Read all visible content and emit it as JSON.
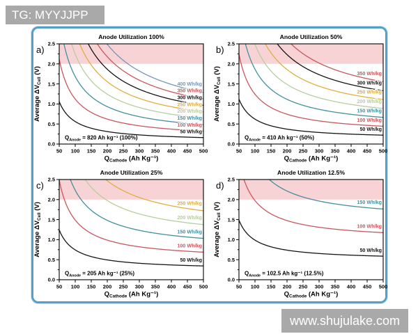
{
  "watermarks": {
    "top_left": "TG: MYYJJPP",
    "bottom_right": "www.shujulake.com"
  },
  "colors": {
    "frame_border": "#55a0c6",
    "watermark_bg": "#a9a9a9",
    "watermark_text": "#ffffff",
    "shaded_band": "#f8d3d6",
    "axis": "#000000"
  },
  "axes": {
    "xlabel_parts": {
      "main": "Q",
      "sub": "Cathode",
      "rest": " (Ah Kg⁻¹)"
    },
    "ylabel_parts": {
      "main": "Average ΔV",
      "sub": "Cell",
      "rest": " (V)"
    },
    "x_ticks": [
      50,
      100,
      150,
      200,
      250,
      300,
      350,
      400,
      450,
      500
    ],
    "y_ticks": [
      0.0,
      0.5,
      1.0,
      1.5,
      2.0,
      2.5
    ],
    "xlim": [
      50,
      500
    ],
    "ylim": [
      0,
      2.5
    ],
    "shaded_region": {
      "y_from": 2.0,
      "y_to": 2.5
    }
  },
  "chart_data": [
    {
      "type": "line",
      "panel": "a",
      "panel_label": "a)",
      "title": "Anode Utilization 100%",
      "xlabel": "Q_Cathode (Ah Kg⁻¹)",
      "ylabel": "Average ΔV_Cell (V)",
      "xlim": [
        50,
        500
      ],
      "ylim": [
        0,
        2.5
      ],
      "q_anode_ah_kg": 820,
      "annotation": "Q_Anode = 820 Ah kg⁻¹ (100%)",
      "annotation_parts": {
        "main": "Q",
        "sub": "Anode",
        "rest": " = 820 Ah kg⁻¹ (100%)"
      },
      "shaded_region": {
        "y_from": 2.0,
        "y_to": 2.5
      },
      "x": [
        50,
        100,
        150,
        200,
        250,
        300,
        350,
        400,
        450,
        500
      ],
      "series": [
        {
          "name": "50 Wh/kg",
          "wh_per_kg": 50,
          "color": "#141414",
          "values": [
            1.061,
            0.561,
            0.394,
            0.311,
            0.261,
            0.228,
            0.204,
            0.186,
            0.172,
            0.161
          ]
        },
        {
          "name": "100 Wh/kg",
          "wh_per_kg": 100,
          "color": "#c9565c",
          "values": [
            2.122,
            1.122,
            0.789,
            0.622,
            0.522,
            0.455,
            0.408,
            0.372,
            0.344,
            0.322
          ]
        },
        {
          "name": "150 Wh/kg",
          "wh_per_kg": 150,
          "color": "#42909c",
          "values": [
            3.183,
            1.683,
            1.183,
            0.933,
            0.783,
            0.683,
            0.611,
            0.558,
            0.516,
            0.483
          ]
        },
        {
          "name": "200 Wh/kg",
          "wh_per_kg": 200,
          "color": "#b7cd9d",
          "values": [
            4.244,
            2.244,
            1.577,
            1.244,
            1.044,
            0.911,
            0.815,
            0.744,
            0.688,
            0.644
          ]
        },
        {
          "name": "250 Wh/kg",
          "wh_per_kg": 250,
          "color": "#deaf3d",
          "values": [
            5.305,
            2.805,
            1.972,
            1.555,
            1.305,
            1.138,
            1.019,
            0.93,
            0.86,
            0.805
          ]
        },
        {
          "name": "300 Wh/kg",
          "wh_per_kg": 300,
          "color": "#141414",
          "values": [
            6.366,
            3.366,
            2.366,
            1.866,
            1.566,
            1.366,
            1.223,
            1.116,
            1.033,
            0.966
          ]
        },
        {
          "name": "350 Wh/kg",
          "wh_per_kg": 350,
          "color": "#c9565c",
          "values": [
            7.427,
            3.927,
            2.76,
            2.177,
            1.827,
            1.594,
            1.427,
            1.302,
            1.205,
            1.127
          ]
        },
        {
          "name": "400 Wh/kg",
          "wh_per_kg": 400,
          "color": "#7596b6",
          "values": [
            8.488,
            4.488,
            3.154,
            2.488,
            2.088,
            1.821,
            1.631,
            1.488,
            1.377,
            1.288
          ]
        }
      ]
    },
    {
      "type": "line",
      "panel": "b",
      "panel_label": "b)",
      "title": "Anode Utilization 50%",
      "xlabel": "Q_Cathode (Ah Kg⁻¹)",
      "ylabel": "Average ΔV_Cell (V)",
      "xlim": [
        50,
        500
      ],
      "ylim": [
        0,
        2.5
      ],
      "q_anode_ah_kg": 410,
      "annotation": "Q_Anode = 410 Ah kg⁻¹ (50%)",
      "annotation_parts": {
        "main": "Q",
        "sub": "Anode",
        "rest": " = 410 Ah kg⁻¹ (50%)"
      },
      "shaded_region": {
        "y_from": 2.0,
        "y_to": 2.5
      },
      "x": [
        50,
        100,
        150,
        200,
        250,
        300,
        350,
        400,
        450,
        500
      ],
      "series": [
        {
          "name": "50 Wh/kg",
          "wh_per_kg": 50,
          "color": "#141414",
          "values": [
            1.122,
            0.622,
            0.455,
            0.372,
            0.322,
            0.289,
            0.265,
            0.247,
            0.233,
            0.222
          ]
        },
        {
          "name": "100 Wh/kg",
          "wh_per_kg": 100,
          "color": "#c9565c",
          "values": [
            2.244,
            1.244,
            0.911,
            0.744,
            0.644,
            0.577,
            0.53,
            0.494,
            0.466,
            0.444
          ]
        },
        {
          "name": "150 Wh/kg",
          "wh_per_kg": 150,
          "color": "#42909c",
          "values": [
            3.366,
            1.866,
            1.366,
            1.116,
            0.966,
            0.866,
            0.794,
            0.741,
            0.699,
            0.666
          ]
        },
        {
          "name": "200 Wh/kg",
          "wh_per_kg": 200,
          "color": "#b7cd9d",
          "values": [
            4.488,
            2.488,
            1.821,
            1.488,
            1.288,
            1.154,
            1.059,
            0.988,
            0.932,
            0.888
          ]
        },
        {
          "name": "250 Wh/kg",
          "wh_per_kg": 250,
          "color": "#deaf3d",
          "values": [
            5.61,
            3.11,
            2.276,
            1.86,
            1.61,
            1.443,
            1.324,
            1.235,
            1.165,
            1.11
          ]
        },
        {
          "name": "300 Wh/kg",
          "wh_per_kg": 300,
          "color": "#141414",
          "values": [
            6.732,
            3.732,
            2.732,
            2.232,
            1.932,
            1.732,
            1.589,
            1.482,
            1.398,
            1.332
          ]
        },
        {
          "name": "350 Wh/kg",
          "wh_per_kg": 350,
          "color": "#c9565c",
          "values": [
            7.854,
            4.354,
            3.187,
            2.604,
            2.254,
            2.02,
            1.854,
            1.729,
            1.631,
            1.554
          ]
        }
      ]
    },
    {
      "type": "line",
      "panel": "c",
      "panel_label": "c)",
      "title": "Anode Utilization 25%",
      "xlabel": "Q_Cathode (Ah Kg⁻¹)",
      "ylabel": "Average ΔV_Cell (V)",
      "xlim": [
        50,
        500
      ],
      "ylim": [
        0,
        2.5
      ],
      "q_anode_ah_kg": 205,
      "annotation": "Q_Anode = 205 Ah kg⁻¹ (25%)",
      "annotation_parts": {
        "main": "Q",
        "sub": "Anode",
        "rest": " = 205 Ah kg⁻¹ (25%)"
      },
      "shaded_region": {
        "y_from": 2.0,
        "y_to": 2.5
      },
      "x": [
        50,
        100,
        150,
        200,
        250,
        300,
        350,
        400,
        450,
        500
      ],
      "series": [
        {
          "name": "50 Wh/kg",
          "wh_per_kg": 50,
          "color": "#141414",
          "values": [
            1.244,
            0.744,
            0.577,
            0.494,
            0.444,
            0.411,
            0.387,
            0.369,
            0.355,
            0.344
          ]
        },
        {
          "name": "100 Wh/kg",
          "wh_per_kg": 100,
          "color": "#c9565c",
          "values": [
            2.488,
            1.488,
            1.154,
            0.988,
            0.888,
            0.821,
            0.774,
            0.738,
            0.71,
            0.688
          ]
        },
        {
          "name": "150 Wh/kg",
          "wh_per_kg": 150,
          "color": "#42909c",
          "values": [
            3.732,
            2.232,
            1.732,
            1.482,
            1.332,
            1.232,
            1.16,
            1.107,
            1.065,
            1.032
          ]
        },
        {
          "name": "200 Wh/kg",
          "wh_per_kg": 200,
          "color": "#b7cd9d",
          "values": [
            4.976,
            2.976,
            2.309,
            1.976,
            1.776,
            1.642,
            1.547,
            1.476,
            1.42,
            1.376
          ]
        },
        {
          "name": "250 Wh/kg",
          "wh_per_kg": 250,
          "color": "#deaf3d",
          "values": [
            6.22,
            3.72,
            2.886,
            2.47,
            2.22,
            2.053,
            1.934,
            1.845,
            1.775,
            1.72
          ]
        }
      ]
    },
    {
      "type": "line",
      "panel": "d",
      "panel_label": "d)",
      "title": "Anode Utilization 12.5%",
      "xlabel": "Q_Cathode (Ah Kg⁻¹)",
      "ylabel": "Average ΔV_Cell (V)",
      "xlim": [
        50,
        500
      ],
      "ylim": [
        0,
        2.5
      ],
      "q_anode_ah_kg": 102.5,
      "annotation": "Q_Anode = 102.5 Ah kg⁻¹ (12.5%)",
      "annotation_parts": {
        "main": "Q",
        "sub": "Anode",
        "rest": " = 102.5 Ah kg⁻¹ (12.5%)"
      },
      "shaded_region": {
        "y_from": 2.0,
        "y_to": 2.5
      },
      "x": [
        50,
        100,
        150,
        200,
        250,
        300,
        350,
        400,
        450,
        500
      ],
      "series": [
        {
          "name": "50 Wh/kg",
          "wh_per_kg": 50,
          "color": "#141414",
          "values": [
            1.488,
            0.988,
            0.821,
            0.738,
            0.688,
            0.654,
            0.631,
            0.613,
            0.599,
            0.588
          ]
        },
        {
          "name": "100 Wh/kg",
          "wh_per_kg": 100,
          "color": "#c9565c",
          "values": [
            2.976,
            1.976,
            1.642,
            1.476,
            1.376,
            1.309,
            1.261,
            1.226,
            1.198,
            1.176
          ]
        },
        {
          "name": "150 Wh/kg",
          "wh_per_kg": 150,
          "color": "#42909c",
          "values": [
            4.463,
            2.963,
            2.463,
            2.213,
            2.063,
            1.963,
            1.892,
            1.838,
            1.797,
            1.763
          ]
        }
      ]
    }
  ]
}
